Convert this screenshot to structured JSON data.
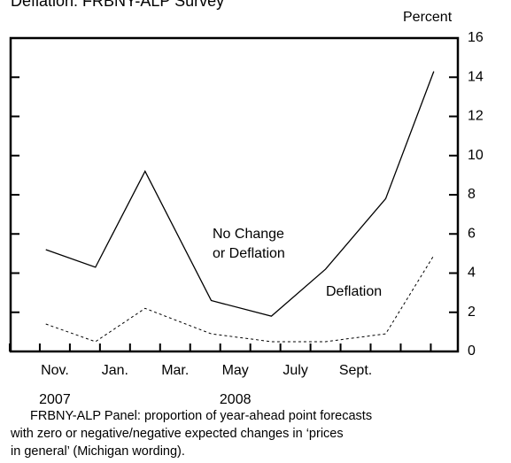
{
  "chart_data": {
    "type": "line",
    "title": "Deflation: FRBNY-ALP Survey",
    "y_label": "Percent",
    "note": [
      "FRBNY-ALP Panel: proportion of year-ahead point forecasts",
      "with zero or negative/negative expected changes in ‘prices",
      "in general’ (Michigan wording)."
    ],
    "x": [
      -0.3,
      1.35,
      3.0,
      5.2,
      7.2,
      9.0,
      11.0,
      12.6
    ],
    "xlim": [
      -1.47,
      13.4
    ],
    "xticks": [
      {
        "value": 0,
        "label": "Nov."
      },
      {
        "value": 2,
        "label": "Jan."
      },
      {
        "value": 4,
        "label": "Mar."
      },
      {
        "value": 6,
        "label": "May"
      },
      {
        "value": 8,
        "label": "July"
      },
      {
        "value": 10,
        "label": "Sept."
      }
    ],
    "years": [
      {
        "value": 0,
        "label": "2007"
      },
      {
        "value": 6,
        "label": "2008"
      }
    ],
    "series": [
      {
        "name": [
          "No Change",
          "or Deflation"
        ],
        "color": "#000",
        "dash": false,
        "values": [
          5.2,
          4.3,
          9.2,
          2.6,
          1.8,
          4.2,
          7.8,
          14.3
        ]
      },
      {
        "name": [
          "Deflation"
        ],
        "color": "#000",
        "dash": true,
        "values": [
          1.4,
          0.5,
          2.2,
          0.9,
          0.5,
          0.5,
          0.9,
          4.9
        ]
      }
    ],
    "ylim": [
      0,
      16
    ],
    "yticks": [
      0,
      2,
      4,
      6,
      8,
      10,
      12,
      14,
      16
    ]
  }
}
